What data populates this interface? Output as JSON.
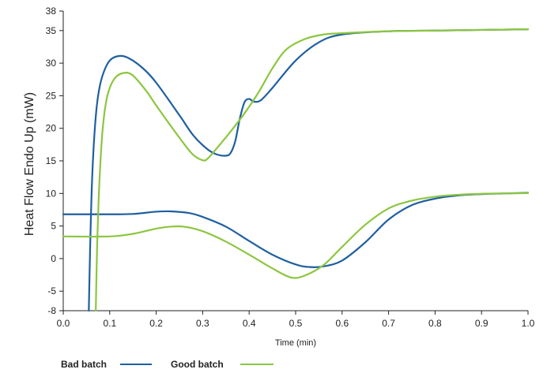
{
  "chart_data": {
    "type": "line",
    "title": "",
    "xlabel": "Time (min)",
    "ylabel": "Heat Flow Endo Up (mW)",
    "xlim": [
      0.0,
      1.0
    ],
    "ylim": [
      -8,
      38
    ],
    "x_ticks": [
      "0.0",
      "0.1",
      "0.2",
      "0.3",
      "0.4",
      "0.5",
      "0.6",
      "0.7",
      "0.8",
      "0.9",
      "1.0"
    ],
    "y_ticks": [
      "38",
      "35",
      "30",
      "25",
      "20",
      "15",
      "10",
      "5",
      "0",
      "-5",
      "-8"
    ],
    "x_tick_values": [
      0.0,
      0.1,
      0.2,
      0.3,
      0.4,
      0.5,
      0.6,
      0.7,
      0.8,
      0.9,
      1.0
    ],
    "y_tick_values": [
      38,
      35,
      30,
      25,
      20,
      15,
      10,
      5,
      0,
      -5,
      -8
    ],
    "grid": false,
    "legend_position": "bottom-left",
    "series": [
      {
        "name": "Bad batch",
        "color": "#1f5fa0",
        "segments": [
          [
            [
              0.055,
              -8
            ],
            [
              0.058,
              2
            ],
            [
              0.062,
              12
            ],
            [
              0.068,
              20
            ],
            [
              0.075,
              25
            ],
            [
              0.085,
              28.2
            ],
            [
              0.1,
              30.4
            ],
            [
              0.12,
              31.1
            ],
            [
              0.14,
              30.8
            ],
            [
              0.17,
              29.3
            ],
            [
              0.2,
              27.0
            ],
            [
              0.25,
              22.0
            ],
            [
              0.28,
              18.9
            ],
            [
              0.31,
              16.8
            ],
            [
              0.33,
              16.0
            ],
            [
              0.35,
              15.8
            ],
            [
              0.36,
              16.2
            ],
            [
              0.37,
              18.0
            ],
            [
              0.38,
              21.5
            ],
            [
              0.39,
              24.0
            ],
            [
              0.4,
              24.5
            ],
            [
              0.41,
              24.1
            ],
            [
              0.425,
              24.3
            ],
            [
              0.45,
              26.2
            ],
            [
              0.5,
              30.4
            ],
            [
              0.55,
              33.2
            ],
            [
              0.6,
              34.4
            ],
            [
              0.7,
              34.9
            ],
            [
              0.8,
              35.0
            ],
            [
              0.9,
              35.1
            ],
            [
              1.0,
              35.2
            ]
          ],
          [
            [
              0.0,
              6.8
            ],
            [
              0.1,
              6.8
            ],
            [
              0.15,
              6.85
            ],
            [
              0.2,
              7.2
            ],
            [
              0.23,
              7.25
            ],
            [
              0.27,
              7.0
            ],
            [
              0.3,
              6.4
            ],
            [
              0.35,
              4.9
            ],
            [
              0.4,
              2.7
            ],
            [
              0.45,
              0.6
            ],
            [
              0.5,
              -0.9
            ],
            [
              0.53,
              -1.3
            ],
            [
              0.56,
              -1.2
            ],
            [
              0.6,
              -0.3
            ],
            [
              0.65,
              2.5
            ],
            [
              0.7,
              6.0
            ],
            [
              0.75,
              8.2
            ],
            [
              0.8,
              9.2
            ],
            [
              0.85,
              9.7
            ],
            [
              0.9,
              9.9
            ],
            [
              0.95,
              10.0
            ],
            [
              1.0,
              10.1
            ]
          ]
        ]
      },
      {
        "name": "Good batch",
        "color": "#8cc63f",
        "segments": [
          [
            [
              0.07,
              -8
            ],
            [
              0.073,
              2
            ],
            [
              0.078,
              12
            ],
            [
              0.085,
              20
            ],
            [
              0.095,
              25
            ],
            [
              0.11,
              27.6
            ],
            [
              0.13,
              28.5
            ],
            [
              0.15,
              28.1
            ],
            [
              0.18,
              25.6
            ],
            [
              0.2,
              23.5
            ],
            [
              0.23,
              20.5
            ],
            [
              0.26,
              17.6
            ],
            [
              0.28,
              15.9
            ],
            [
              0.3,
              15.1
            ],
            [
              0.31,
              15.3
            ],
            [
              0.33,
              16.9
            ],
            [
              0.36,
              19.5
            ],
            [
              0.39,
              22.3
            ],
            [
              0.42,
              25.5
            ],
            [
              0.45,
              29.2
            ],
            [
              0.48,
              32.1
            ],
            [
              0.52,
              33.7
            ],
            [
              0.56,
              34.4
            ],
            [
              0.6,
              34.6
            ],
            [
              0.7,
              34.9
            ],
            [
              0.8,
              35.0
            ],
            [
              0.9,
              35.1
            ],
            [
              1.0,
              35.2
            ]
          ],
          [
            [
              0.0,
              3.4
            ],
            [
              0.1,
              3.4
            ],
            [
              0.15,
              3.8
            ],
            [
              0.2,
              4.6
            ],
            [
              0.23,
              4.9
            ],
            [
              0.26,
              4.9
            ],
            [
              0.3,
              4.2
            ],
            [
              0.35,
              2.6
            ],
            [
              0.4,
              0.6
            ],
            [
              0.45,
              -1.5
            ],
            [
              0.49,
              -2.9
            ],
            [
              0.52,
              -2.6
            ],
            [
              0.56,
              -1.0
            ],
            [
              0.6,
              1.8
            ],
            [
              0.65,
              5.2
            ],
            [
              0.7,
              7.7
            ],
            [
              0.75,
              8.9
            ],
            [
              0.8,
              9.5
            ],
            [
              0.85,
              9.8
            ],
            [
              0.9,
              9.95
            ],
            [
              0.95,
              10.0
            ],
            [
              1.0,
              10.05
            ]
          ]
        ]
      }
    ]
  }
}
